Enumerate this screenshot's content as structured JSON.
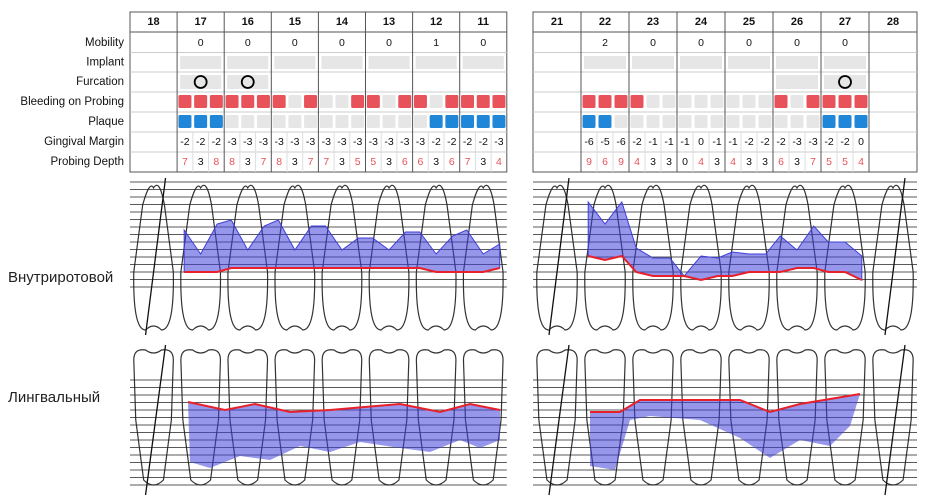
{
  "row_labels": [
    "Mobility",
    "Implant",
    "Furcation",
    "Bleeding on Probing",
    "Plaque",
    "Gingival Margin",
    "Probing Depth"
  ],
  "views": [
    "Внутриротовой",
    "Лингвальный"
  ],
  "settings": {
    "probing_depth_alert_min": 4,
    "bleeding_color": "#e8525a",
    "plaque_color": "#1f86d8",
    "empty_color": "#e6e6e6",
    "pocket_color": "#3f3fd8",
    "margin_color": "#e8202a"
  },
  "quadrants": [
    {
      "teeth": [
        {
          "number": 18,
          "mobility": null,
          "furcation": null,
          "bleeding": null,
          "plaque": null,
          "gingival_margin": null,
          "probing_depth": null
        },
        {
          "number": 17,
          "mobility": 0,
          "furcation": true,
          "bleeding": [
            1,
            1,
            1
          ],
          "plaque": [
            1,
            1,
            1
          ],
          "gingival_margin": [
            -2,
            -2,
            -2
          ],
          "probing_depth": [
            7,
            3,
            8
          ]
        },
        {
          "number": 16,
          "mobility": 0,
          "furcation": true,
          "bleeding": [
            1,
            1,
            1
          ],
          "plaque": [
            0,
            0,
            0
          ],
          "gingival_margin": [
            -3,
            -3,
            -3
          ],
          "probing_depth": [
            8,
            3,
            7
          ]
        },
        {
          "number": 15,
          "mobility": 0,
          "furcation": null,
          "bleeding": [
            1,
            0,
            1
          ],
          "plaque": [
            0,
            0,
            0
          ],
          "gingival_margin": [
            -3,
            -3,
            -3
          ],
          "probing_depth": [
            8,
            3,
            7
          ]
        },
        {
          "number": 14,
          "mobility": 0,
          "furcation": null,
          "bleeding": [
            0,
            0,
            1
          ],
          "plaque": [
            0,
            0,
            0
          ],
          "gingival_margin": [
            -3,
            -3,
            -3
          ],
          "probing_depth": [
            7,
            3,
            5
          ]
        },
        {
          "number": 13,
          "mobility": 0,
          "furcation": null,
          "bleeding": [
            1,
            0,
            1
          ],
          "plaque": [
            0,
            0,
            0
          ],
          "gingival_margin": [
            -3,
            -3,
            -3
          ],
          "probing_depth": [
            5,
            3,
            6
          ]
        },
        {
          "number": 12,
          "mobility": 1,
          "furcation": null,
          "bleeding": [
            1,
            0,
            1
          ],
          "plaque": [
            0,
            1,
            1
          ],
          "gingival_margin": [
            -3,
            -2,
            -2
          ],
          "probing_depth": [
            6,
            3,
            6
          ]
        },
        {
          "number": 11,
          "mobility": 0,
          "furcation": null,
          "bleeding": [
            1,
            1,
            1
          ],
          "plaque": [
            1,
            1,
            1
          ],
          "gingival_margin": [
            -2,
            -2,
            -3
          ],
          "probing_depth": [
            7,
            3,
            4
          ]
        }
      ]
    },
    {
      "teeth": [
        {
          "number": 21,
          "mobility": null,
          "furcation": null,
          "bleeding": null,
          "plaque": null,
          "gingival_margin": null,
          "probing_depth": null
        },
        {
          "number": 22,
          "mobility": 2,
          "furcation": null,
          "bleeding": [
            1,
            1,
            1
          ],
          "plaque": [
            1,
            1,
            0
          ],
          "gingival_margin": [
            -6,
            -5,
            -6
          ],
          "probing_depth": [
            9,
            6,
            9
          ]
        },
        {
          "number": 23,
          "mobility": 0,
          "furcation": null,
          "bleeding": [
            1,
            0,
            0
          ],
          "plaque": [
            0,
            0,
            0
          ],
          "gingival_margin": [
            -2,
            -1,
            -1
          ],
          "probing_depth": [
            4,
            3,
            3
          ]
        },
        {
          "number": 24,
          "mobility": 0,
          "furcation": null,
          "bleeding": [
            0,
            0,
            0
          ],
          "plaque": [
            0,
            0,
            0
          ],
          "gingival_margin": [
            -1,
            0,
            -1
          ],
          "probing_depth": [
            0,
            4,
            3
          ]
        },
        {
          "number": 25,
          "mobility": 0,
          "furcation": null,
          "bleeding": [
            0,
            0,
            0
          ],
          "plaque": [
            0,
            0,
            0
          ],
          "gingival_margin": [
            -1,
            -2,
            -2
          ],
          "probing_depth": [
            4,
            3,
            3
          ]
        },
        {
          "number": 26,
          "mobility": 0,
          "furcation": false,
          "bleeding": [
            1,
            0,
            1
          ],
          "plaque": [
            0,
            0,
            0
          ],
          "gingival_margin": [
            -2,
            -3,
            -3
          ],
          "probing_depth": [
            6,
            3,
            7
          ]
        },
        {
          "number": 27,
          "mobility": 0,
          "furcation": true,
          "bleeding": [
            1,
            1,
            1
          ],
          "plaque": [
            1,
            1,
            1
          ],
          "gingival_margin": [
            -2,
            -2,
            0
          ],
          "probing_depth": [
            5,
            5,
            4
          ]
        },
        {
          "number": 28,
          "mobility": null,
          "furcation": null,
          "bleeding": null,
          "plaque": null,
          "gingival_margin": null,
          "probing_depth": null
        }
      ]
    }
  ]
}
